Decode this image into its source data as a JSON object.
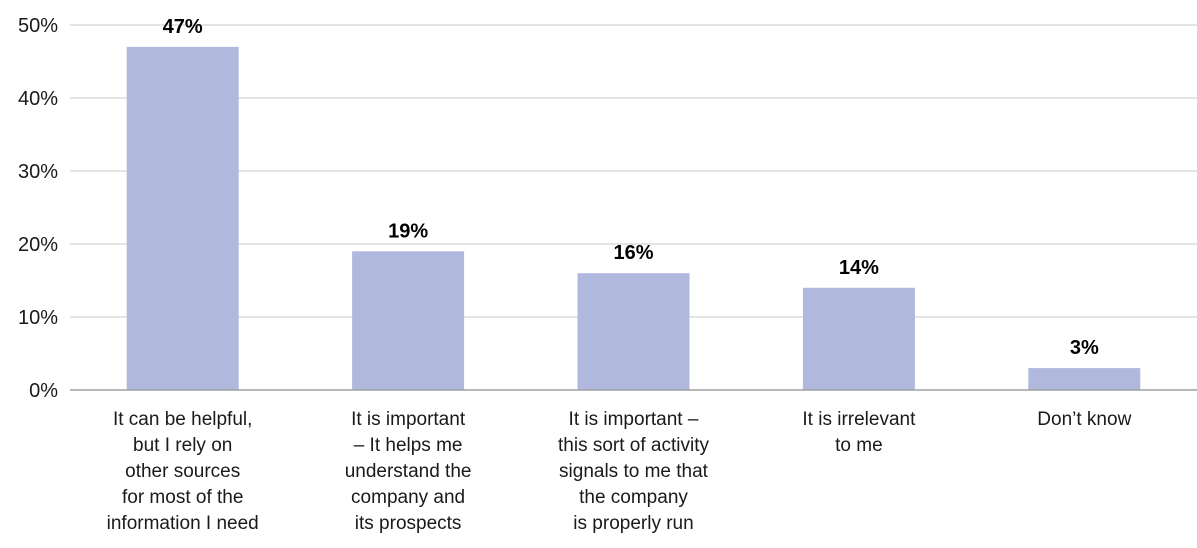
{
  "chart_data": {
    "type": "bar",
    "categories": [
      [
        "It can be helpful,",
        "but I rely on",
        "other sources",
        "for most of the",
        "information I need"
      ],
      [
        "It is important",
        "– It helps me",
        "understand the",
        "company and",
        "its prospects"
      ],
      [
        "It is important –",
        "this sort of activity",
        "signals to me that",
        "the company",
        "is properly run"
      ],
      [
        "It is irrelevant",
        "to me"
      ],
      [
        "Don’t know"
      ]
    ],
    "values": [
      47,
      19,
      16,
      14,
      3
    ],
    "data_labels": [
      "47%",
      "19%",
      "16%",
      "14%",
      "3%"
    ],
    "y_ticks": [
      0,
      10,
      20,
      30,
      40,
      50
    ],
    "y_tick_labels": [
      "0%",
      "10%",
      "20%",
      "30%",
      "40%",
      "50%"
    ],
    "ylim": [
      0,
      50
    ],
    "grid": true,
    "legend": "none",
    "title": "",
    "xlabel": "",
    "ylabel": "",
    "colors": {
      "bar": "#b0b8de",
      "grid": "#c8c8c8",
      "axis": "#a0a0a0",
      "text": "#1a1a1a"
    }
  }
}
